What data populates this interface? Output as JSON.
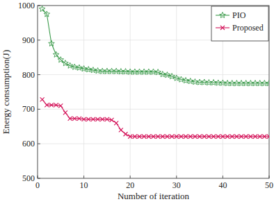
{
  "chart_data": {
    "type": "line",
    "x_label": "Number of iteration",
    "y_label": "Energy consumption(J)",
    "x": [
      1,
      2,
      3,
      4,
      5,
      6,
      7,
      8,
      9,
      10,
      11,
      12,
      13,
      14,
      15,
      16,
      17,
      18,
      19,
      20,
      21,
      22,
      23,
      24,
      25,
      26,
      27,
      28,
      29,
      30,
      31,
      32,
      33,
      34,
      35,
      36,
      37,
      38,
      39,
      40,
      41,
      42,
      43,
      44,
      45,
      46,
      47,
      48,
      49,
      50
    ],
    "series": [
      {
        "name": "PIO",
        "color": "#3a9a4a",
        "marker": "star",
        "line_style": "solid",
        "values": [
          990,
          975,
          890,
          858,
          843,
          833,
          826,
          822,
          820,
          817,
          815,
          813,
          811,
          810,
          810,
          810,
          810,
          809,
          809,
          808,
          808,
          808,
          808,
          808,
          808,
          807,
          801,
          799,
          795,
          790,
          786,
          783,
          781,
          779,
          778,
          778,
          777,
          777,
          776,
          776,
          775,
          775,
          775,
          775,
          775,
          775,
          775,
          775,
          775,
          775
        ]
      },
      {
        "name": "Proposed",
        "color": "#d4145a",
        "marker": "x",
        "line_style": "solid",
        "values": [
          728,
          712,
          712,
          712,
          710,
          690,
          673,
          673,
          673,
          671,
          671,
          671,
          671,
          671,
          671,
          669,
          660,
          640,
          628,
          621,
          621,
          621,
          621,
          621,
          621,
          621,
          621,
          621,
          621,
          621,
          621,
          621,
          621,
          621,
          621,
          621,
          621,
          621,
          621,
          621,
          621,
          621,
          621,
          621,
          621,
          621,
          621,
          621,
          621,
          621
        ]
      }
    ],
    "xlim": [
      0,
      50
    ],
    "xticks": [
      0,
      10,
      20,
      30,
      40,
      50
    ],
    "ylim": [
      500,
      1000
    ],
    "yticks": [
      500,
      600,
      700,
      800,
      900,
      1000
    ],
    "grid": true,
    "legend": "upper right"
  }
}
